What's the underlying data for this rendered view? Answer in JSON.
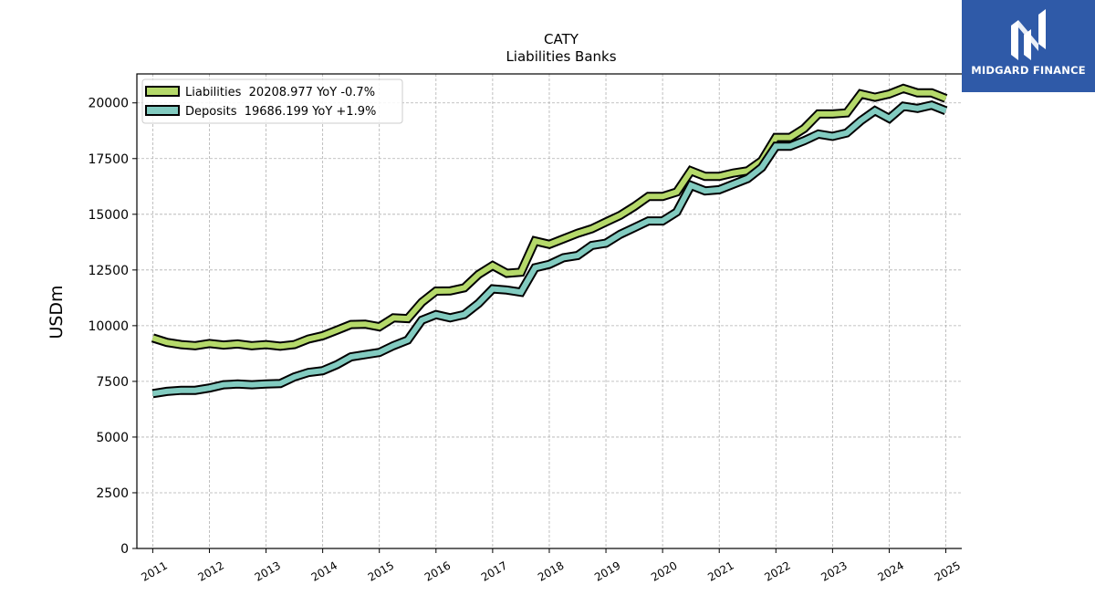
{
  "brand": {
    "name": "MIDGARD FINANCE",
    "color": "#2f5aa8",
    "icon": "midgard-logo-icon"
  },
  "chart_data": {
    "type": "line",
    "title": "CATY",
    "subtitle": "Liabilities Banks",
    "ylabel": "USDm",
    "xlabel": "",
    "ylim": [
      0,
      21300
    ],
    "xlim": [
      2010.72,
      2025.7
    ],
    "yticks": [
      0,
      2500,
      5000,
      7500,
      10000,
      12500,
      15000,
      17500,
      20000
    ],
    "ytick_labels": [
      "0",
      "2500",
      "5000",
      "7500",
      "10000",
      "12500",
      "15000",
      "17500",
      "20000"
    ],
    "xticks": [
      2011,
      2012,
      2013,
      2014,
      2015,
      2016,
      2017,
      2018,
      2019,
      2020,
      2021,
      2022,
      2023,
      2024,
      2025
    ],
    "xtick_labels": [
      "2011",
      "2012",
      "2013",
      "2014",
      "2015",
      "2016",
      "2017",
      "2018",
      "2019",
      "2020",
      "2021",
      "2022",
      "2023",
      "2024",
      "2025"
    ],
    "grid": true,
    "legend_position": "top-left",
    "x": [
      2011.0,
      2011.25,
      2011.5,
      2011.75,
      2012.0,
      2012.25,
      2012.5,
      2012.75,
      2013.0,
      2013.25,
      2013.5,
      2013.75,
      2014.0,
      2014.25,
      2014.5,
      2014.75,
      2015.0,
      2015.25,
      2015.5,
      2015.75,
      2016.0,
      2016.25,
      2016.5,
      2016.75,
      2017.0,
      2017.25,
      2017.5,
      2017.75,
      2018.0,
      2018.25,
      2018.5,
      2018.75,
      2019.0,
      2019.25,
      2019.5,
      2019.75,
      2020.0,
      2020.25,
      2020.5,
      2020.75,
      2021.0,
      2021.25,
      2021.5,
      2021.75,
      2022.0,
      2022.25,
      2022.5,
      2022.75,
      2023.0,
      2023.25,
      2023.5,
      2023.75,
      2024.0,
      2024.25,
      2024.5,
      2024.75,
      2025.0
    ],
    "series": [
      {
        "name": "Liabilities",
        "legend_label": "Liabilities  20208.977 YoY -0.7%",
        "color": "#b5d96a",
        "values": [
          9450,
          9250,
          9150,
          9100,
          9200,
          9130,
          9180,
          9100,
          9150,
          9080,
          9150,
          9400,
          9550,
          9800,
          10050,
          10070,
          9950,
          10350,
          10320,
          11050,
          11550,
          11560,
          11700,
          12300,
          12700,
          12350,
          12400,
          13800,
          13650,
          13900,
          14150,
          14350,
          14650,
          14950,
          15350,
          15800,
          15800,
          16000,
          16950,
          16700,
          16700,
          16850,
          16950,
          17400,
          18450,
          18450,
          18850,
          19500,
          19500,
          19550,
          20400,
          20250,
          20400,
          20650,
          20450,
          20450,
          20200
        ]
      },
      {
        "name": "Deposits",
        "legend_label": "Deposits  19686.199 YoY +1.9%",
        "color": "#82cbc0",
        "values": [
          6950,
          7050,
          7100,
          7100,
          7200,
          7350,
          7380,
          7350,
          7380,
          7400,
          7700,
          7900,
          7980,
          8250,
          8600,
          8700,
          8800,
          9100,
          9350,
          10250,
          10500,
          10350,
          10500,
          11000,
          11650,
          11600,
          11500,
          12600,
          12750,
          13050,
          13150,
          13600,
          13700,
          14100,
          14400,
          14700,
          14700,
          15100,
          16300,
          16050,
          16100,
          16350,
          16600,
          17100,
          18050,
          18050,
          18300,
          18600,
          18500,
          18650,
          19200,
          19650,
          19300,
          19850,
          19750,
          19900,
          19650
        ]
      }
    ]
  }
}
